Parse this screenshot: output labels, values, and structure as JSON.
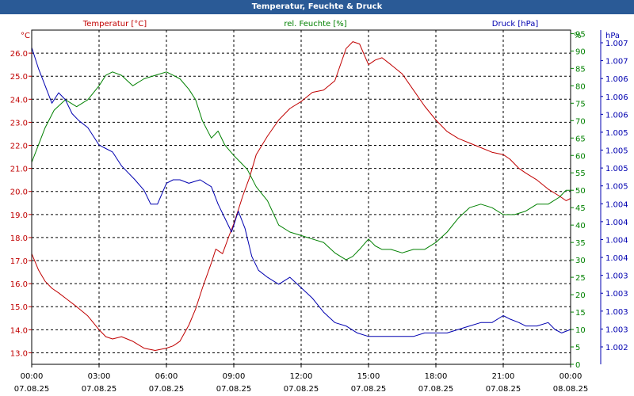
{
  "window": {
    "title": "Temperatur, Feuchte & Druck"
  },
  "colors": {
    "temperature": "#c00000",
    "humidity": "#008000",
    "pressure": "#0000b0",
    "grid": "#000000",
    "text": "#000000"
  },
  "chart_data": {
    "type": "line",
    "title": "Temperatur, Feuchte & Druck",
    "grid": true,
    "x": {
      "unit": "hours since 07.08.25 00:00",
      "range": [
        0,
        24
      ],
      "tick_labels": [
        {
          "time": "00:00",
          "date": "07.08.25"
        },
        {
          "time": "03:00",
          "date": "07.08.25"
        },
        {
          "time": "06:00",
          "date": "07.08.25"
        },
        {
          "time": "09:00",
          "date": "07.08.25"
        },
        {
          "time": "12:00",
          "date": "07.08.25"
        },
        {
          "time": "15:00",
          "date": "07.08.25"
        },
        {
          "time": "18:00",
          "date": "07.08.25"
        },
        {
          "time": "21:00",
          "date": "07.08.25"
        },
        {
          "time": "00:00",
          "date": "08.08.25"
        }
      ]
    },
    "axes": {
      "temperature": {
        "label": "Temperatur [°C]",
        "unit": "°C",
        "range": [
          12.5,
          27.0
        ],
        "ticks": [
          "13.0",
          "14.0",
          "15.0",
          "16.0",
          "17.0",
          "18.0",
          "19.0",
          "20.0",
          "21.0",
          "22.0",
          "23.0",
          "24.0",
          "25.0",
          "26.0"
        ]
      },
      "humidity": {
        "label": "rel. Feuchte [%]",
        "unit": "%",
        "range": [
          0,
          96
        ],
        "ticks": [
          "0",
          "5",
          "10",
          "15",
          "20",
          "25",
          "30",
          "35",
          "40",
          "45",
          "50",
          "55",
          "60",
          "65",
          "70",
          "75",
          "80",
          "85",
          "90",
          "95"
        ]
      },
      "pressure": {
        "label": "Druck [hPa]",
        "unit": "hPa",
        "ticks": [
          "1.002",
          "1.003",
          "1.003",
          "1.003",
          "1.003",
          "1.004",
          "1.004",
          "1.004",
          "1.004",
          "1.005",
          "1.005",
          "1.005",
          "1.005",
          "1.006",
          "1.006",
          "1.006",
          "1.007",
          "1.007"
        ]
      }
    },
    "series": [
      {
        "name": "Temperatur [°C]",
        "axis": "temperature",
        "x": [
          0,
          0.3,
          0.6,
          0.9,
          1.2,
          1.6,
          2,
          2.5,
          3,
          3.3,
          3.6,
          4,
          4.5,
          5,
          5.5,
          6,
          6.3,
          6.6,
          7,
          7.3,
          7.6,
          8,
          8.2,
          8.5,
          8.8,
          9,
          9.2,
          9.4,
          9.7,
          10,
          10.5,
          11,
          11.5,
          12,
          12.5,
          13,
          13.5,
          14,
          14.3,
          14.6,
          15,
          15.3,
          15.6,
          16,
          16.5,
          17,
          17.5,
          18,
          18.5,
          19,
          19.5,
          20,
          20.5,
          21,
          21.3,
          21.7,
          22,
          22.5,
          23,
          23.5,
          23.8,
          24
        ],
        "values": [
          17.3,
          16.6,
          16.1,
          15.8,
          15.6,
          15.3,
          15.0,
          14.6,
          14.0,
          13.7,
          13.6,
          13.7,
          13.5,
          13.2,
          13.1,
          13.2,
          13.3,
          13.5,
          14.2,
          14.9,
          15.8,
          16.9,
          17.5,
          17.3,
          18.1,
          18.6,
          19.2,
          19.8,
          20.6,
          21.6,
          22.4,
          23.1,
          23.6,
          23.9,
          24.3,
          24.4,
          24.8,
          26.2,
          26.5,
          26.4,
          25.5,
          25.7,
          25.8,
          25.5,
          25.1,
          24.4,
          23.7,
          23.1,
          22.6,
          22.3,
          22.1,
          21.9,
          21.7,
          21.6,
          21.4,
          21.0,
          20.8,
          20.5,
          20.1,
          19.8,
          19.6,
          19.7
        ]
      },
      {
        "name": "rel. Feuchte [%]",
        "axis": "humidity",
        "x": [
          0,
          0.3,
          0.6,
          1,
          1.5,
          2,
          2.5,
          3,
          3.3,
          3.6,
          4,
          4.5,
          5,
          5.5,
          6,
          6.3,
          6.6,
          7,
          7.3,
          7.6,
          8,
          8.3,
          8.6,
          9,
          9.3,
          9.6,
          10,
          10.5,
          11,
          11.5,
          12,
          12.5,
          13,
          13.5,
          14,
          14.3,
          14.6,
          15,
          15.3,
          15.6,
          16,
          16.5,
          17,
          17.5,
          18,
          18.5,
          19,
          19.5,
          20,
          20.5,
          21,
          21.5,
          22,
          22.5,
          23,
          23.5,
          23.8,
          24
        ],
        "values": [
          58,
          63,
          68,
          73,
          76,
          74,
          76,
          80,
          83,
          84,
          83,
          80,
          82,
          83,
          84,
          83,
          82,
          79,
          76,
          70,
          65,
          67,
          63,
          60,
          58,
          56,
          51,
          47,
          40,
          38,
          37,
          36,
          35,
          32,
          30,
          31,
          33,
          36,
          34,
          33,
          33,
          32,
          33,
          33,
          35,
          38,
          42,
          45,
          46,
          45,
          43,
          43,
          44,
          46,
          46,
          48,
          50,
          50
        ]
      },
      {
        "name": "Druck [hPa]",
        "axis": "pressure",
        "y_note": "values plotted against the Druck [hPa] axis",
        "x": [
          0,
          0.3,
          0.6,
          0.9,
          1.2,
          1.5,
          1.8,
          2.1,
          2.5,
          3,
          3.3,
          3.6,
          4,
          4.3,
          4.6,
          5,
          5.3,
          5.6,
          6,
          6.3,
          6.6,
          7,
          7.5,
          8,
          8.3,
          8.6,
          8.9,
          9.2,
          9.5,
          9.8,
          10.1,
          10.5,
          11,
          11.5,
          12,
          12.5,
          13,
          13.5,
          14,
          14.5,
          15,
          15.5,
          16,
          16.5,
          17,
          17.5,
          18,
          18.5,
          19,
          19.5,
          20,
          20.5,
          21,
          21.3,
          21.7,
          22,
          22.5,
          23,
          23.3,
          23.6,
          24
        ],
        "values": [
          91,
          85,
          80,
          75,
          78,
          76,
          72,
          70,
          68,
          63,
          62,
          61,
          57,
          55,
          53,
          50,
          46,
          46,
          52,
          53,
          53,
          52,
          53,
          51,
          46,
          42,
          38,
          44,
          39,
          31,
          27,
          25,
          23,
          25,
          22,
          19,
          15,
          12,
          11,
          9,
          8,
          8,
          8,
          8,
          8,
          9,
          9,
          9,
          10,
          11,
          12,
          12,
          14,
          13,
          12,
          11,
          11,
          12,
          10,
          9,
          10
        ]
      }
    ]
  }
}
